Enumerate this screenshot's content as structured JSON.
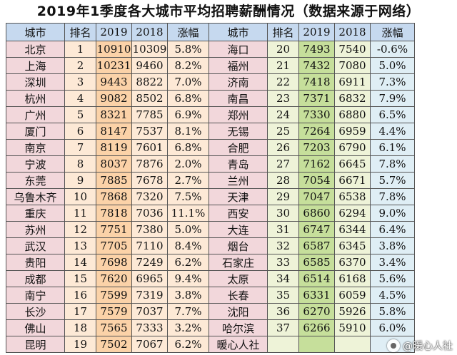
{
  "title": "2019年1季度各大城市平均招聘薪酬情况（数据来源于网络）",
  "headers": [
    "城市",
    "排名",
    "2019",
    "2018",
    "涨幅",
    "城市",
    "排名",
    "2019",
    "2018",
    "涨幅"
  ],
  "rows": [
    [
      "北京",
      "1",
      "10910",
      "10309",
      "5.8%",
      "海口",
      "20",
      "7493",
      "7540",
      "-0.6%"
    ],
    [
      "上海",
      "2",
      "10231",
      "9460",
      "8.2%",
      "福州",
      "21",
      "7432",
      "7080",
      "5.0%"
    ],
    [
      "深圳",
      "3",
      "9443",
      "8822",
      "7.0%",
      "济南",
      "22",
      "7418",
      "6911",
      "7.3%"
    ],
    [
      "杭州",
      "4",
      "9082",
      "8502",
      "6.8%",
      "南昌",
      "23",
      "7371",
      "6832",
      "7.9%"
    ],
    [
      "广州",
      "5",
      "8321",
      "7785",
      "6.9%",
      "郑州",
      "24",
      "7330",
      "6880",
      "6.5%"
    ],
    [
      "厦门",
      "6",
      "8147",
      "7537",
      "8.1%",
      "无锡",
      "25",
      "7264",
      "6959",
      "4.4%"
    ],
    [
      "南京",
      "7",
      "8119",
      "7601",
      "6.8%",
      "合肥",
      "26",
      "7203",
      "6790",
      "6.1%"
    ],
    [
      "宁波",
      "8",
      "8037",
      "7876",
      "2.0%",
      "青岛",
      "27",
      "7162",
      "6645",
      "7.8%"
    ],
    [
      "东莞",
      "9",
      "7885",
      "7678",
      "2.7%",
      "兰州",
      "28",
      "7054",
      "6671",
      "5.7%"
    ],
    [
      "乌鲁木齐",
      "10",
      "7868",
      "7320",
      "7.5%",
      "天津",
      "29",
      "7047",
      "6538",
      "7.8%"
    ],
    [
      "重庆",
      "11",
      "7818",
      "7036",
      "11.1%",
      "西安",
      "30",
      "6860",
      "6294",
      "9.0%"
    ],
    [
      "苏州",
      "12",
      "7751",
      "7380",
      "5.0%",
      "大连",
      "31",
      "6747",
      "6344",
      "6.4%"
    ],
    [
      "武汉",
      "13",
      "7705",
      "7110",
      "8.4%",
      "烟台",
      "32",
      "6587",
      "6345",
      "3.8%"
    ],
    [
      "贵阳",
      "14",
      "7698",
      "7249",
      "6.2%",
      "石家庄",
      "33",
      "6585",
      "6370",
      "3.4%"
    ],
    [
      "成都",
      "15",
      "7620",
      "6965",
      "9.4%",
      "太原",
      "34",
      "6514",
      "6168",
      "5.6%"
    ],
    [
      "南宁",
      "16",
      "7599",
      "7319",
      "3.8%",
      "长春",
      "35",
      "6331",
      "6059",
      "4.5%"
    ],
    [
      "长沙",
      "17",
      "7579",
      "7037",
      "7.7%",
      "沈阳",
      "36",
      "6270",
      "5926",
      "5.8%"
    ],
    [
      "佛山",
      "18",
      "7565",
      "7333",
      "3.2%",
      "哈尔滨",
      "37",
      "6266",
      "5910",
      "6.0%"
    ],
    [
      "昆明",
      "19",
      "7502",
      "7067",
      "6.2%",
      "暖心人社",
      "",
      "",
      "",
      ""
    ]
  ],
  "watermark": "@暖心人社",
  "colors": {
    "header": "#c6d9ef",
    "city": "#f2d7db",
    "y2019_left": "#fbd2a8",
    "y2019_right": "#c6df9b"
  }
}
